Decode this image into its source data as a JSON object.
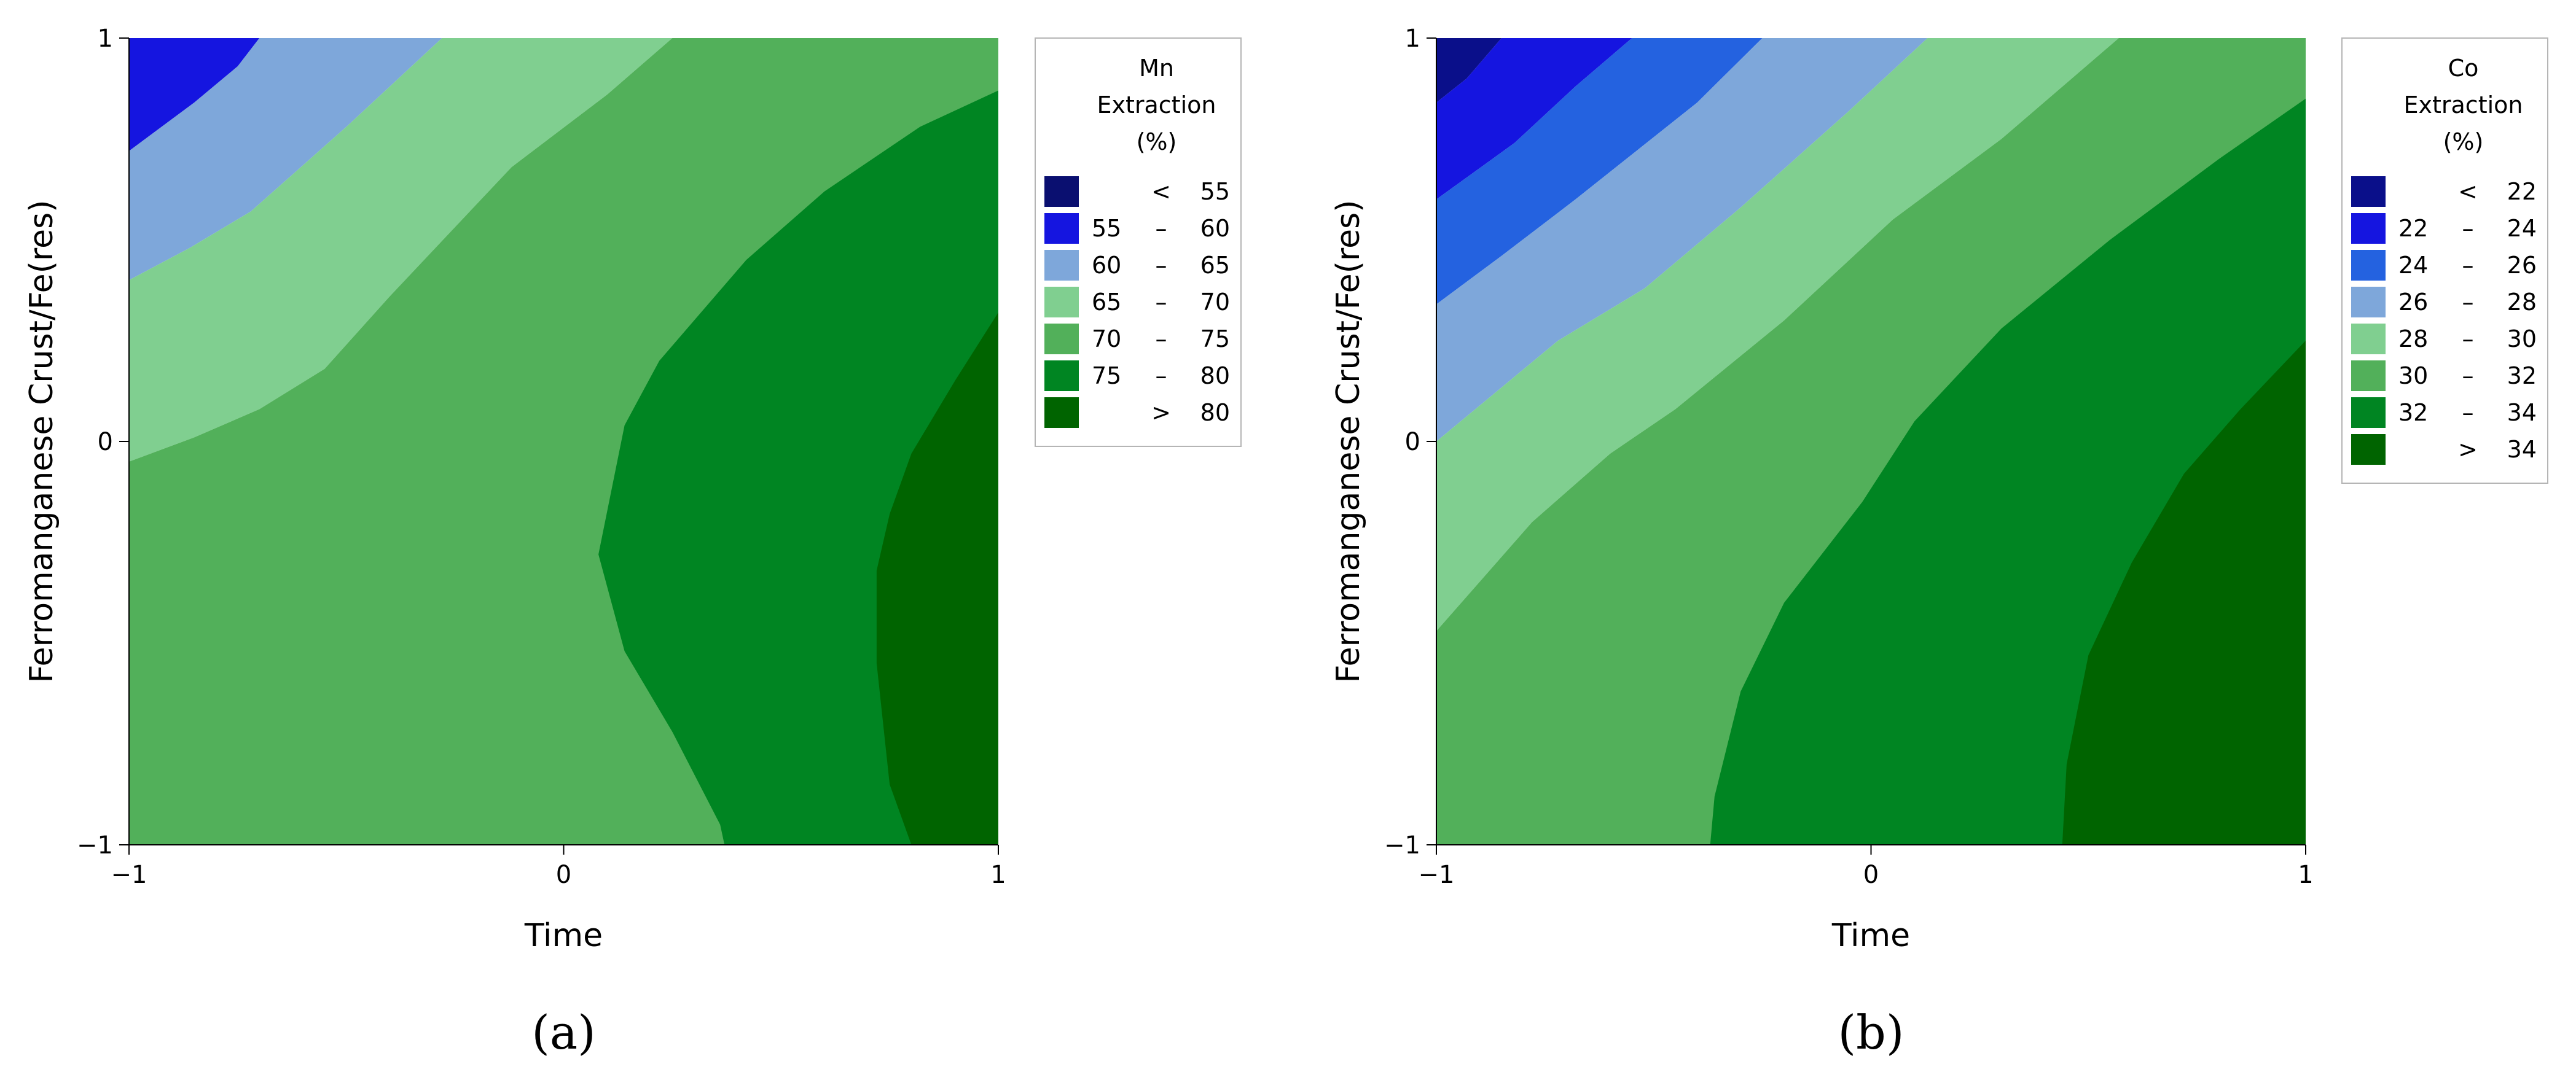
{
  "chart_data": [
    {
      "type": "contour",
      "panel_label": "(a)",
      "xlabel": "Time",
      "ylabel": "Ferromanganese Crust/Fe(res)",
      "xlim": [
        -1,
        1
      ],
      "ylim": [
        -1,
        1
      ],
      "x_ticks": [
        "−1",
        "0",
        "1"
      ],
      "y_ticks": [
        "−1",
        "0",
        "1"
      ],
      "legend": {
        "title": [
          "Mn",
          "Extraction",
          "(%)"
        ],
        "position": "right",
        "items": [
          {
            "lo": "",
            "op": "<",
            "hi": "55",
            "color": "#0a0f70"
          },
          {
            "lo": "55",
            "op": "–",
            "hi": "60",
            "color": "#1515e0"
          },
          {
            "lo": "60",
            "op": "–",
            "hi": "65",
            "color": "#7ea7da"
          },
          {
            "lo": "65",
            "op": "–",
            "hi": "70",
            "color": "#80cf90"
          },
          {
            "lo": "70",
            "op": "–",
            "hi": "75",
            "color": "#52b05a"
          },
          {
            "lo": "75",
            "op": "–",
            "hi": "80",
            "color": "#008522"
          },
          {
            "lo": "",
            "op": ">",
            "hi": "80",
            "color": "#006400"
          }
        ]
      },
      "contours": [
        {
          "level": "55 – 60",
          "points": [
            [
              -1,
              1
            ],
            [
              -0.7,
              1
            ],
            [
              -0.75,
              0.93
            ],
            [
              -0.85,
              0.84
            ],
            [
              -1,
              0.72
            ]
          ]
        },
        {
          "level": "60 – 65",
          "points": [
            [
              -0.7,
              1
            ],
            [
              -0.28,
              1
            ],
            [
              -0.5,
              0.78
            ],
            [
              -0.72,
              0.57
            ],
            [
              -0.86,
              0.48
            ],
            [
              -1,
              0.4
            ],
            [
              -1,
              0.72
            ],
            [
              -0.85,
              0.84
            ],
            [
              -0.75,
              0.93
            ]
          ]
        },
        {
          "level": "65 – 70",
          "points": [
            [
              -0.28,
              1
            ],
            [
              0.25,
              1
            ],
            [
              0.1,
              0.86
            ],
            [
              -0.12,
              0.68
            ],
            [
              -0.4,
              0.36
            ],
            [
              -0.55,
              0.18
            ],
            [
              -0.7,
              0.08
            ],
            [
              -0.85,
              0.01
            ],
            [
              -1,
              -0.05
            ],
            [
              -1,
              0.4
            ],
            [
              -0.86,
              0.48
            ],
            [
              -0.72,
              0.57
            ],
            [
              -0.5,
              0.78
            ]
          ]
        },
        {
          "level": "70 – 75",
          "points": [
            [
              0.25,
              1
            ],
            [
              1,
              1
            ],
            [
              1,
              -1
            ],
            [
              -1,
              -1
            ],
            [
              -1,
              -0.05
            ],
            [
              -0.85,
              0.01
            ],
            [
              -0.7,
              0.08
            ],
            [
              -0.55,
              0.18
            ],
            [
              -0.4,
              0.36
            ],
            [
              -0.12,
              0.68
            ],
            [
              0.1,
              0.86
            ]
          ]
        },
        {
          "level": "75 – 80",
          "points": [
            [
              1,
              0.87
            ],
            [
              0.82,
              0.78
            ],
            [
              0.6,
              0.62
            ],
            [
              0.42,
              0.45
            ],
            [
              0.22,
              0.2
            ],
            [
              0.14,
              0.04
            ],
            [
              0.08,
              -0.28
            ],
            [
              0.14,
              -0.52
            ],
            [
              0.25,
              -0.72
            ],
            [
              0.36,
              -0.95
            ],
            [
              0.37,
              -1
            ],
            [
              1,
              -1
            ]
          ]
        },
        {
          "level": "> 80",
          "points": [
            [
              1,
              0.32
            ],
            [
              0.9,
              0.15
            ],
            [
              0.8,
              -0.03
            ],
            [
              0.75,
              -0.18
            ],
            [
              0.72,
              -0.32
            ],
            [
              0.72,
              -0.55
            ],
            [
              0.75,
              -0.85
            ],
            [
              0.8,
              -1
            ],
            [
              1,
              -1
            ]
          ]
        }
      ]
    },
    {
      "type": "contour",
      "panel_label": "(b)",
      "xlabel": "Time",
      "ylabel": "Ferromanganese Crust/Fe(res)",
      "xlim": [
        -1,
        1
      ],
      "ylim": [
        -1,
        1
      ],
      "x_ticks": [
        "−1",
        "0",
        "1"
      ],
      "y_ticks": [
        "−1",
        "0",
        "1"
      ],
      "legend": {
        "title": [
          "Co",
          "Extraction",
          "(%)"
        ],
        "position": "right",
        "items": [
          {
            "lo": "",
            "op": "<",
            "hi": "22",
            "color": "#0a0f8a"
          },
          {
            "lo": "22",
            "op": "–",
            "hi": "24",
            "color": "#1515e0"
          },
          {
            "lo": "24",
            "op": "–",
            "hi": "26",
            "color": "#2462e0"
          },
          {
            "lo": "26",
            "op": "–",
            "hi": "28",
            "color": "#7ea7da"
          },
          {
            "lo": "28",
            "op": "–",
            "hi": "30",
            "color": "#80cf90"
          },
          {
            "lo": "30",
            "op": "–",
            "hi": "32",
            "color": "#52b05a"
          },
          {
            "lo": "32",
            "op": "–",
            "hi": "34",
            "color": "#008522"
          },
          {
            "lo": "",
            "op": ">",
            "hi": "34",
            "color": "#006400"
          }
        ]
      },
      "contours": [
        {
          "level": "< 22",
          "points": [
            [
              -1,
              1
            ],
            [
              -0.85,
              1
            ],
            [
              -0.93,
              0.9
            ],
            [
              -1,
              0.84
            ]
          ]
        },
        {
          "level": "22 – 24",
          "points": [
            [
              -0.85,
              1
            ],
            [
              -0.55,
              1
            ],
            [
              -0.68,
              0.88
            ],
            [
              -0.82,
              0.74
            ],
            [
              -1,
              0.6
            ],
            [
              -1,
              0.84
            ],
            [
              -0.93,
              0.9
            ]
          ]
        },
        {
          "level": "24 – 26",
          "points": [
            [
              -0.55,
              1
            ],
            [
              -0.25,
              1
            ],
            [
              -0.4,
              0.84
            ],
            [
              -0.68,
              0.6
            ],
            [
              -0.85,
              0.46
            ],
            [
              -1,
              0.34
            ],
            [
              -1,
              0.6
            ],
            [
              -0.82,
              0.74
            ],
            [
              -0.68,
              0.88
            ]
          ]
        },
        {
          "level": "26 – 28",
          "points": [
            [
              -0.25,
              1
            ],
            [
              0.13,
              1
            ],
            [
              -0.05,
              0.82
            ],
            [
              -0.3,
              0.58
            ],
            [
              -0.52,
              0.38
            ],
            [
              -0.72,
              0.25
            ],
            [
              -1,
              0
            ],
            [
              -1,
              0.34
            ],
            [
              -0.85,
              0.46
            ],
            [
              -0.68,
              0.6
            ],
            [
              -0.4,
              0.84
            ]
          ]
        },
        {
          "level": "28 – 30",
          "points": [
            [
              0.13,
              1
            ],
            [
              0.57,
              1
            ],
            [
              0.3,
              0.75
            ],
            [
              0.05,
              0.55
            ],
            [
              -0.2,
              0.3
            ],
            [
              -0.45,
              0.08
            ],
            [
              -0.6,
              -0.03
            ],
            [
              -0.78,
              -0.2
            ],
            [
              -1,
              -0.47
            ],
            [
              -1,
              0
            ],
            [
              -0.72,
              0.25
            ],
            [
              -0.52,
              0.38
            ],
            [
              -0.3,
              0.58
            ],
            [
              -0.05,
              0.82
            ]
          ]
        },
        {
          "level": "30 – 32",
          "points": [
            [
              0.57,
              1
            ],
            [
              1,
              1
            ],
            [
              1,
              -1
            ],
            [
              -1,
              -1
            ],
            [
              -1,
              -0.47
            ],
            [
              -0.78,
              -0.2
            ],
            [
              -0.6,
              -0.03
            ],
            [
              -0.45,
              0.08
            ],
            [
              -0.2,
              0.3
            ],
            [
              0.05,
              0.55
            ],
            [
              0.3,
              0.75
            ]
          ]
        },
        {
          "level": "32 – 34",
          "points": [
            [
              1,
              0.85
            ],
            [
              0.8,
              0.7
            ],
            [
              0.55,
              0.5
            ],
            [
              0.3,
              0.28
            ],
            [
              0.1,
              0.05
            ],
            [
              -0.02,
              -0.15
            ],
            [
              -0.2,
              -0.4
            ],
            [
              -0.3,
              -0.62
            ],
            [
              -0.36,
              -0.88
            ],
            [
              -0.37,
              -1
            ],
            [
              1,
              -1
            ]
          ]
        },
        {
          "level": "> 34",
          "points": [
            [
              1,
              0.25
            ],
            [
              0.85,
              0.08
            ],
            [
              0.72,
              -0.08
            ],
            [
              0.6,
              -0.3
            ],
            [
              0.5,
              -0.53
            ],
            [
              0.45,
              -0.8
            ],
            [
              0.44,
              -1
            ],
            [
              1,
              -1
            ]
          ]
        }
      ]
    }
  ]
}
